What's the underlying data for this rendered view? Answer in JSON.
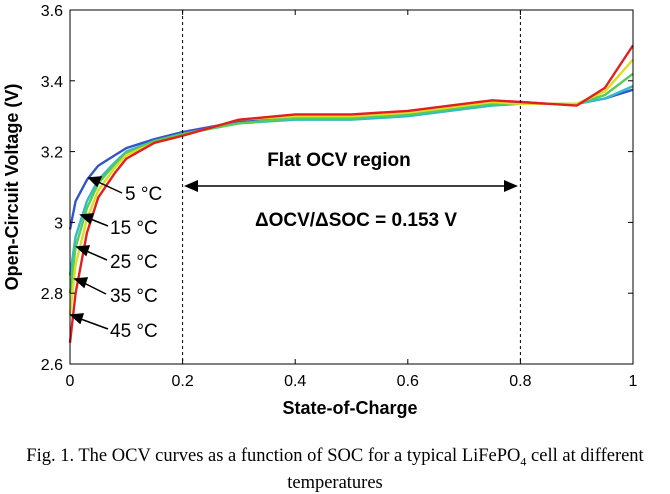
{
  "chart_data": {
    "type": "line",
    "xlabel": "State-of-Charge",
    "ylabel": "Open-Circuit Voltage (V)",
    "xlim": [
      0,
      1
    ],
    "ylim": [
      2.6,
      3.6
    ],
    "x_ticks": [
      "0",
      "0.2",
      "0.4",
      "0.6",
      "0.8",
      "1"
    ],
    "y_ticks": [
      "2.6",
      "2.8",
      "3",
      "3.2",
      "3.4",
      "3.6"
    ],
    "series": [
      {
        "name": "5 °C",
        "color": "#3355cc",
        "x": [
          0,
          0.01,
          0.03,
          0.05,
          0.08,
          0.1,
          0.15,
          0.2,
          0.3,
          0.4,
          0.5,
          0.6,
          0.7,
          0.75,
          0.8,
          0.85,
          0.9,
          0.95,
          1.0
        ],
        "y": [
          2.98,
          3.06,
          3.12,
          3.16,
          3.19,
          3.21,
          3.235,
          3.255,
          3.285,
          3.295,
          3.295,
          3.31,
          3.33,
          3.335,
          3.34,
          3.335,
          3.335,
          3.35,
          3.375
        ]
      },
      {
        "name": "15 °C",
        "color": "#33bbcc",
        "x": [
          0,
          0.01,
          0.03,
          0.05,
          0.08,
          0.1,
          0.15,
          0.2,
          0.3,
          0.4,
          0.5,
          0.6,
          0.7,
          0.75,
          0.8,
          0.85,
          0.9,
          0.95,
          1.0
        ],
        "y": [
          2.85,
          2.96,
          3.06,
          3.12,
          3.17,
          3.2,
          3.23,
          3.25,
          3.28,
          3.29,
          3.29,
          3.3,
          3.32,
          3.33,
          3.335,
          3.335,
          3.335,
          3.35,
          3.385
        ]
      },
      {
        "name": "25 °C",
        "color": "#55cc55",
        "x": [
          0,
          0.01,
          0.03,
          0.05,
          0.08,
          0.1,
          0.15,
          0.2,
          0.3,
          0.4,
          0.5,
          0.6,
          0.7,
          0.75,
          0.8,
          0.85,
          0.9,
          0.95,
          1.0
        ],
        "y": [
          2.8,
          2.93,
          3.04,
          3.11,
          3.165,
          3.195,
          3.23,
          3.25,
          3.28,
          3.295,
          3.295,
          3.305,
          3.325,
          3.335,
          3.335,
          3.335,
          3.335,
          3.36,
          3.42
        ]
      },
      {
        "name": "35 °C",
        "color": "#dddd22",
        "x": [
          0,
          0.01,
          0.03,
          0.05,
          0.08,
          0.1,
          0.15,
          0.2,
          0.3,
          0.4,
          0.5,
          0.6,
          0.7,
          0.75,
          0.8,
          0.85,
          0.9,
          0.95,
          1.0
        ],
        "y": [
          2.74,
          2.88,
          3.01,
          3.09,
          3.155,
          3.19,
          3.225,
          3.245,
          3.29,
          3.3,
          3.3,
          3.31,
          3.33,
          3.34,
          3.335,
          3.335,
          3.335,
          3.37,
          3.46
        ]
      },
      {
        "name": "45 °C",
        "color": "#e02020",
        "x": [
          0,
          0.01,
          0.03,
          0.05,
          0.08,
          0.1,
          0.15,
          0.2,
          0.3,
          0.4,
          0.5,
          0.6,
          0.7,
          0.75,
          0.8,
          0.85,
          0.9,
          0.95,
          1.0
        ],
        "y": [
          2.66,
          2.8,
          2.97,
          3.07,
          3.14,
          3.18,
          3.225,
          3.245,
          3.29,
          3.305,
          3.305,
          3.315,
          3.335,
          3.345,
          3.34,
          3.335,
          3.33,
          3.38,
          3.5
        ]
      }
    ],
    "vlines": [
      0.2,
      0.8
    ],
    "annotations": {
      "region_label": "Flat OCV region",
      "slope_label": "ΔOCV/ΔSOC = 0.153 V"
    },
    "temperature_labels": [
      "5 °C",
      "15 °C",
      "25 °C",
      "35 °C",
      "45 °C"
    ]
  },
  "caption": {
    "prefix": "Fig. 1. The OCV curves as a function of SOC for a typical LiFePO",
    "subscript": "4",
    "suffix": " cell at different temperatures"
  }
}
